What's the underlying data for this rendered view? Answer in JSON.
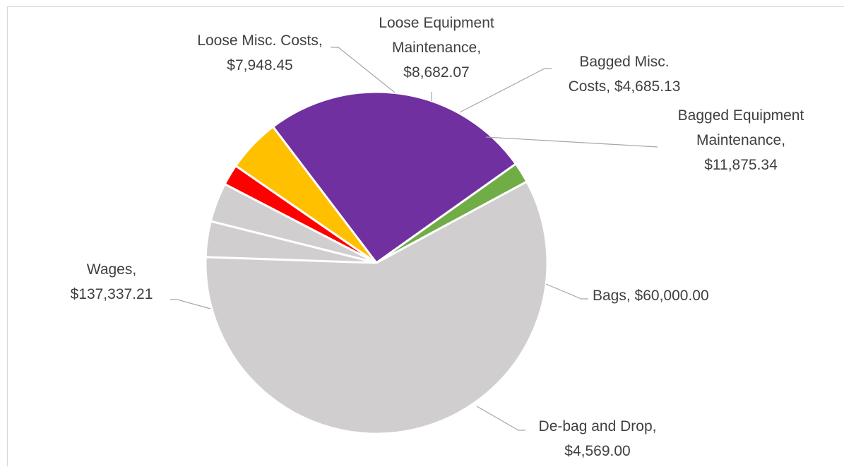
{
  "chart_data": {
    "type": "pie",
    "title": "",
    "slices": [
      {
        "label": "Bagged Misc. Costs",
        "value": 4685.13,
        "value_text": "$4,685.13",
        "color": "#ff0000"
      },
      {
        "label": "Bagged Equipment Maintenance",
        "value": 11875.34,
        "value_text": "$11,875.34",
        "color": "#ffc000"
      },
      {
        "label": "Bags",
        "value": 60000.0,
        "value_text": "$60,000.00",
        "color": "#7030a0"
      },
      {
        "label": "De-bag and Drop",
        "value": 4569.0,
        "value_text": "$4,569.00",
        "color": "#70ad47"
      },
      {
        "label": "Wages",
        "value": 137337.21,
        "value_text": "$137,337.21",
        "color": "#d0cece"
      },
      {
        "label": "Loose Misc. Costs",
        "value": 7948.45,
        "value_text": "$7,948.45",
        "color": "#d0cece"
      },
      {
        "label": "Loose Equipment Maintenance",
        "value": 8682.07,
        "value_text": "$8,682.07",
        "color": "#d0cece"
      }
    ],
    "labels": [
      {
        "lines": [
          "Loose Misc. Costs,",
          "$7,948.45"
        ]
      },
      {
        "lines": [
          "Loose Equipment",
          "Maintenance,",
          "$8,682.07"
        ]
      },
      {
        "lines": [
          "Bagged Misc.",
          "Costs, $4,685.13"
        ]
      },
      {
        "lines": [
          "Bagged Equipment",
          "Maintenance,",
          "$11,875.34"
        ]
      },
      {
        "lines": [
          "Bags, $60,000.00"
        ]
      },
      {
        "lines": [
          "De-bag and Drop,",
          "$4,569.00"
        ]
      },
      {
        "lines": [
          "Wages,",
          "$137,337.21"
        ]
      }
    ]
  }
}
